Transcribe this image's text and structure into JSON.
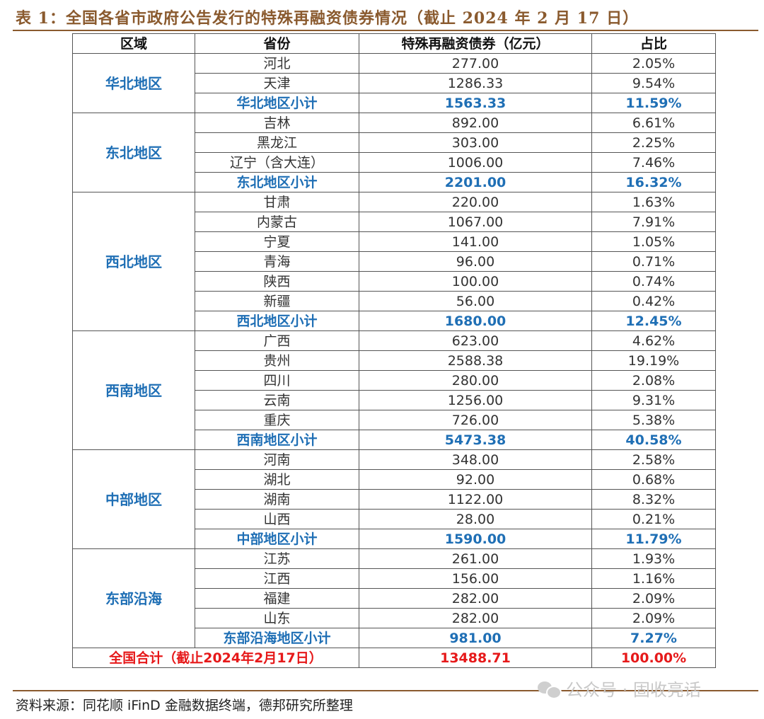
{
  "title": "表 1：全国各省市政府公告发行的特殊再融资债券情况（截止 2024 年 2 月 17 日）",
  "header": {
    "region": "区域",
    "province": "省份",
    "amount": "特殊再融资债券（亿元）",
    "share": "占比"
  },
  "groups": [
    {
      "region": "华北地区",
      "rows": [
        [
          "河北",
          "277.00",
          "2.05%"
        ],
        [
          "天津",
          "1286.33",
          "9.54%"
        ]
      ],
      "subtotal": [
        "华北地区小计",
        "1563.33",
        "11.59%"
      ]
    },
    {
      "region": "东北地区",
      "rows": [
        [
          "吉林",
          "892.00",
          "6.61%"
        ],
        [
          "黑龙江",
          "303.00",
          "2.25%"
        ],
        [
          "辽宁（含大连）",
          "1006.00",
          "7.46%"
        ]
      ],
      "subtotal": [
        "东北地区小计",
        "2201.00",
        "16.32%"
      ]
    },
    {
      "region": "西北地区",
      "rows": [
        [
          "甘肃",
          "220.00",
          "1.63%"
        ],
        [
          "内蒙古",
          "1067.00",
          "7.91%"
        ],
        [
          "宁夏",
          "141.00",
          "1.05%"
        ],
        [
          "青海",
          "96.00",
          "0.71%"
        ],
        [
          "陕西",
          "100.00",
          "0.74%"
        ],
        [
          "新疆",
          "56.00",
          "0.42%"
        ]
      ],
      "subtotal": [
        "西北地区小计",
        "1680.00",
        "12.45%"
      ]
    },
    {
      "region": "西南地区",
      "rows": [
        [
          "广西",
          "623.00",
          "4.62%"
        ],
        [
          "贵州",
          "2588.38",
          "19.19%"
        ],
        [
          "四川",
          "280.00",
          "2.08%"
        ],
        [
          "云南",
          "1256.00",
          "9.31%"
        ],
        [
          "重庆",
          "726.00",
          "5.38%"
        ]
      ],
      "subtotal": [
        "西南地区小计",
        "5473.38",
        "40.58%"
      ]
    },
    {
      "region": "中部地区",
      "rows": [
        [
          "河南",
          "348.00",
          "2.58%"
        ],
        [
          "湖北",
          "92.00",
          "0.68%"
        ],
        [
          "湖南",
          "1122.00",
          "8.32%"
        ],
        [
          "山西",
          "28.00",
          "0.21%"
        ]
      ],
      "subtotal": [
        "中部地区小计",
        "1590.00",
        "11.79%"
      ]
    },
    {
      "region": "东部沿海",
      "rows": [
        [
          "江苏",
          "261.00",
          "1.93%"
        ],
        [
          "江西",
          "156.00",
          "1.16%"
        ],
        [
          "福建",
          "282.00",
          "2.09%"
        ],
        [
          "山东",
          "282.00",
          "2.09%"
        ]
      ],
      "subtotal": [
        "东部沿海地区小计",
        "981.00",
        "7.27%"
      ]
    }
  ],
  "total": [
    "全国合计（截止2024年2月17日）",
    "13488.71",
    "100.00%"
  ],
  "source": "资料来源：同花顺 iFinD 金融数据终端，德邦研究所整理",
  "watermark": "公众号 · 固收亮话",
  "colors": {
    "title": "#8a5a2e",
    "region_text": "#1f6fb5",
    "total_text": "#e6191a"
  }
}
